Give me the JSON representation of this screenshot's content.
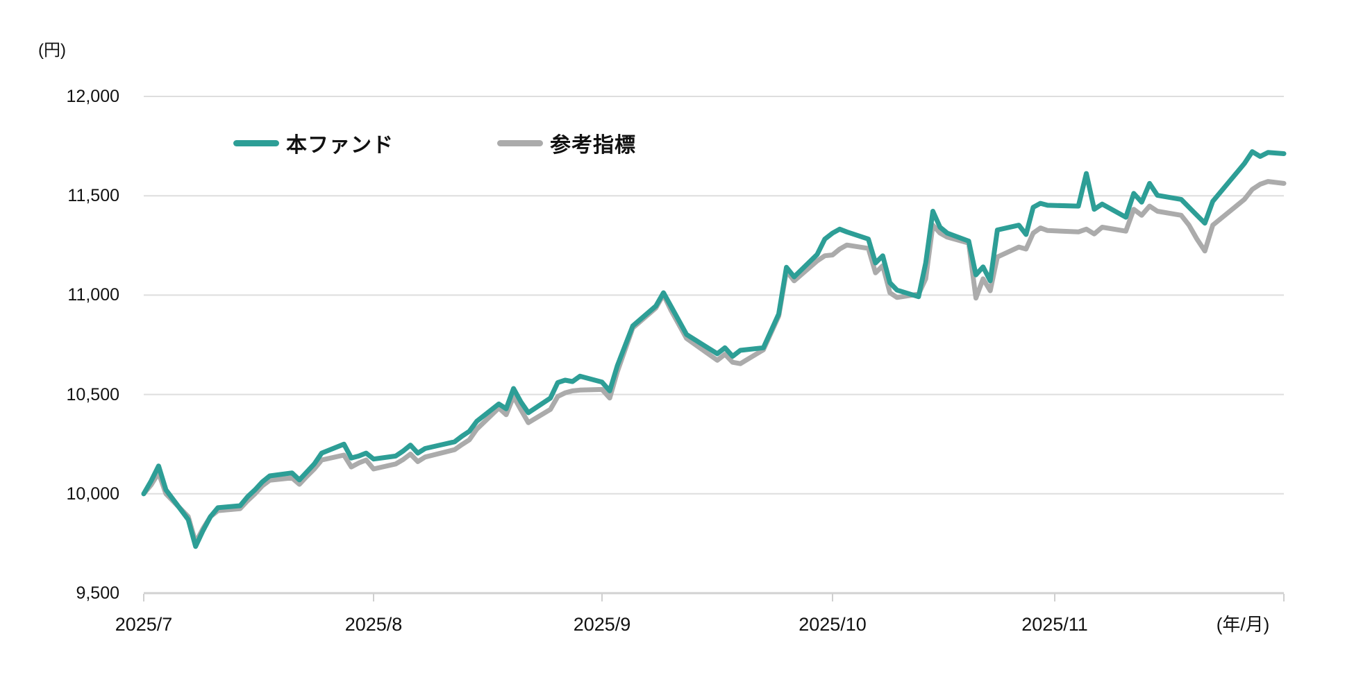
{
  "header": {
    "y_unit_label": "(円)",
    "x_unit_label": "(年/月)"
  },
  "legend": {
    "items": [
      {
        "label": "本ファンド",
        "color": "#2D9E96"
      },
      {
        "label": "参考指標",
        "color": "#ABABAB"
      }
    ]
  },
  "colors": {
    "gridline": "#DEDEDE",
    "axis": "#D2D2D2",
    "tick": "#CFCFCF",
    "background": "#FFFFFF"
  },
  "chart_data": {
    "type": "line",
    "title": "",
    "ylabel": "(円)",
    "xlabel": "(年/月)",
    "ylim": [
      9500,
      12000
    ],
    "grid": "horizontal-only",
    "legend_position": "top-inside",
    "y_ticks": [
      12000,
      11500,
      11000,
      10500,
      10000,
      9500
    ],
    "y_tick_labels": [
      "12,000",
      "11,500",
      "11,000",
      "10,500",
      "10,000",
      "9,500"
    ],
    "x_tick_labels": [
      "2025/7",
      "2025/8",
      "2025/9",
      "2025/10",
      "2025/11"
    ],
    "x": [
      "7/1",
      "7/2",
      "7/3",
      "7/4",
      "7/7",
      "7/8",
      "7/9",
      "7/10",
      "7/11",
      "7/14",
      "7/15",
      "7/16",
      "7/17",
      "7/18",
      "7/21",
      "7/22",
      "7/23",
      "7/24",
      "7/25",
      "7/28",
      "7/29",
      "7/30",
      "7/31",
      "8/1",
      "8/4",
      "8/5",
      "8/6",
      "8/7",
      "8/8",
      "8/12",
      "8/13",
      "8/14",
      "8/15",
      "8/18",
      "8/19",
      "8/20",
      "8/21",
      "8/22",
      "8/25",
      "8/26",
      "8/27",
      "8/28",
      "8/29",
      "9/1",
      "9/2",
      "9/3",
      "9/4",
      "9/5",
      "9/8",
      "9/9",
      "9/10",
      "9/11",
      "9/12",
      "9/16",
      "9/17",
      "9/18",
      "9/19",
      "9/22",
      "9/24",
      "9/25",
      "9/26",
      "9/29",
      "9/30",
      "10/1",
      "10/2",
      "10/3",
      "10/6",
      "10/7",
      "10/8",
      "10/9",
      "10/10",
      "10/13",
      "10/14",
      "10/15",
      "10/16",
      "10/17",
      "10/20",
      "10/21",
      "10/22",
      "10/23",
      "10/24",
      "10/27",
      "10/28",
      "10/29",
      "10/30",
      "10/31",
      "11/4",
      "11/5",
      "11/6",
      "11/7",
      "11/10",
      "11/11",
      "11/12",
      "11/13",
      "11/14",
      "11/17",
      "11/18",
      "11/19",
      "11/20",
      "11/21",
      "11/25",
      "11/26",
      "11/27",
      "11/28",
      "11/30"
    ],
    "series": [
      {
        "name": "本ファンド",
        "color": "#2D9E96",
        "values": [
          10000,
          10065,
          10140,
          10020,
          9870,
          9735,
          9815,
          9885,
          9930,
          9940,
          9985,
          10020,
          10060,
          10090,
          10105,
          10070,
          10110,
          10150,
          10205,
          10250,
          10180,
          10190,
          10205,
          10175,
          10190,
          10215,
          10245,
          10205,
          10228,
          10262,
          10290,
          10315,
          10365,
          10452,
          10428,
          10530,
          10462,
          10408,
          10482,
          10560,
          10572,
          10565,
          10592,
          10562,
          10518,
          10645,
          10745,
          10845,
          10945,
          11012,
          10942,
          10872,
          10802,
          10705,
          10735,
          10692,
          10722,
          10735,
          10905,
          11140,
          11092,
          11205,
          11282,
          11312,
          11332,
          11318,
          11282,
          11162,
          11198,
          11062,
          11025,
          10992,
          11162,
          11422,
          11342,
          11312,
          11272,
          11102,
          11142,
          11072,
          11328,
          11352,
          11305,
          11442,
          11462,
          11452,
          11448,
          11612,
          11432,
          11458,
          11392,
          11512,
          11468,
          11562,
          11502,
          11482,
          11442,
          11402,
          11362,
          11472,
          11662,
          11722,
          11698,
          11718,
          11712
        ]
      },
      {
        "name": "参考指標",
        "color": "#ABABAB",
        "values": [
          10000,
          10045,
          10105,
          10000,
          9885,
          9755,
          9825,
          9885,
          9915,
          9925,
          9965,
          10000,
          10040,
          10068,
          10080,
          10048,
          10088,
          10125,
          10170,
          10195,
          10135,
          10155,
          10170,
          10125,
          10150,
          10172,
          10200,
          10162,
          10185,
          10222,
          10248,
          10272,
          10325,
          10432,
          10398,
          10490,
          10422,
          10358,
          10425,
          10490,
          10508,
          10518,
          10522,
          10525,
          10482,
          10615,
          10725,
          10835,
          10935,
          11002,
          10922,
          10852,
          10782,
          10672,
          10702,
          10662,
          10655,
          10725,
          10895,
          11122,
          11072,
          11172,
          11198,
          11202,
          11232,
          11252,
          11235,
          11112,
          11148,
          11012,
          10988,
          11005,
          11082,
          11352,
          11312,
          11292,
          11262,
          10985,
          11082,
          11022,
          11192,
          11242,
          11232,
          11312,
          11338,
          11325,
          11318,
          11332,
          11308,
          11342,
          11322,
          11432,
          11402,
          11448,
          11422,
          11402,
          11352,
          11282,
          11222,
          11352,
          11482,
          11532,
          11558,
          11572,
          11562
        ]
      }
    ]
  }
}
